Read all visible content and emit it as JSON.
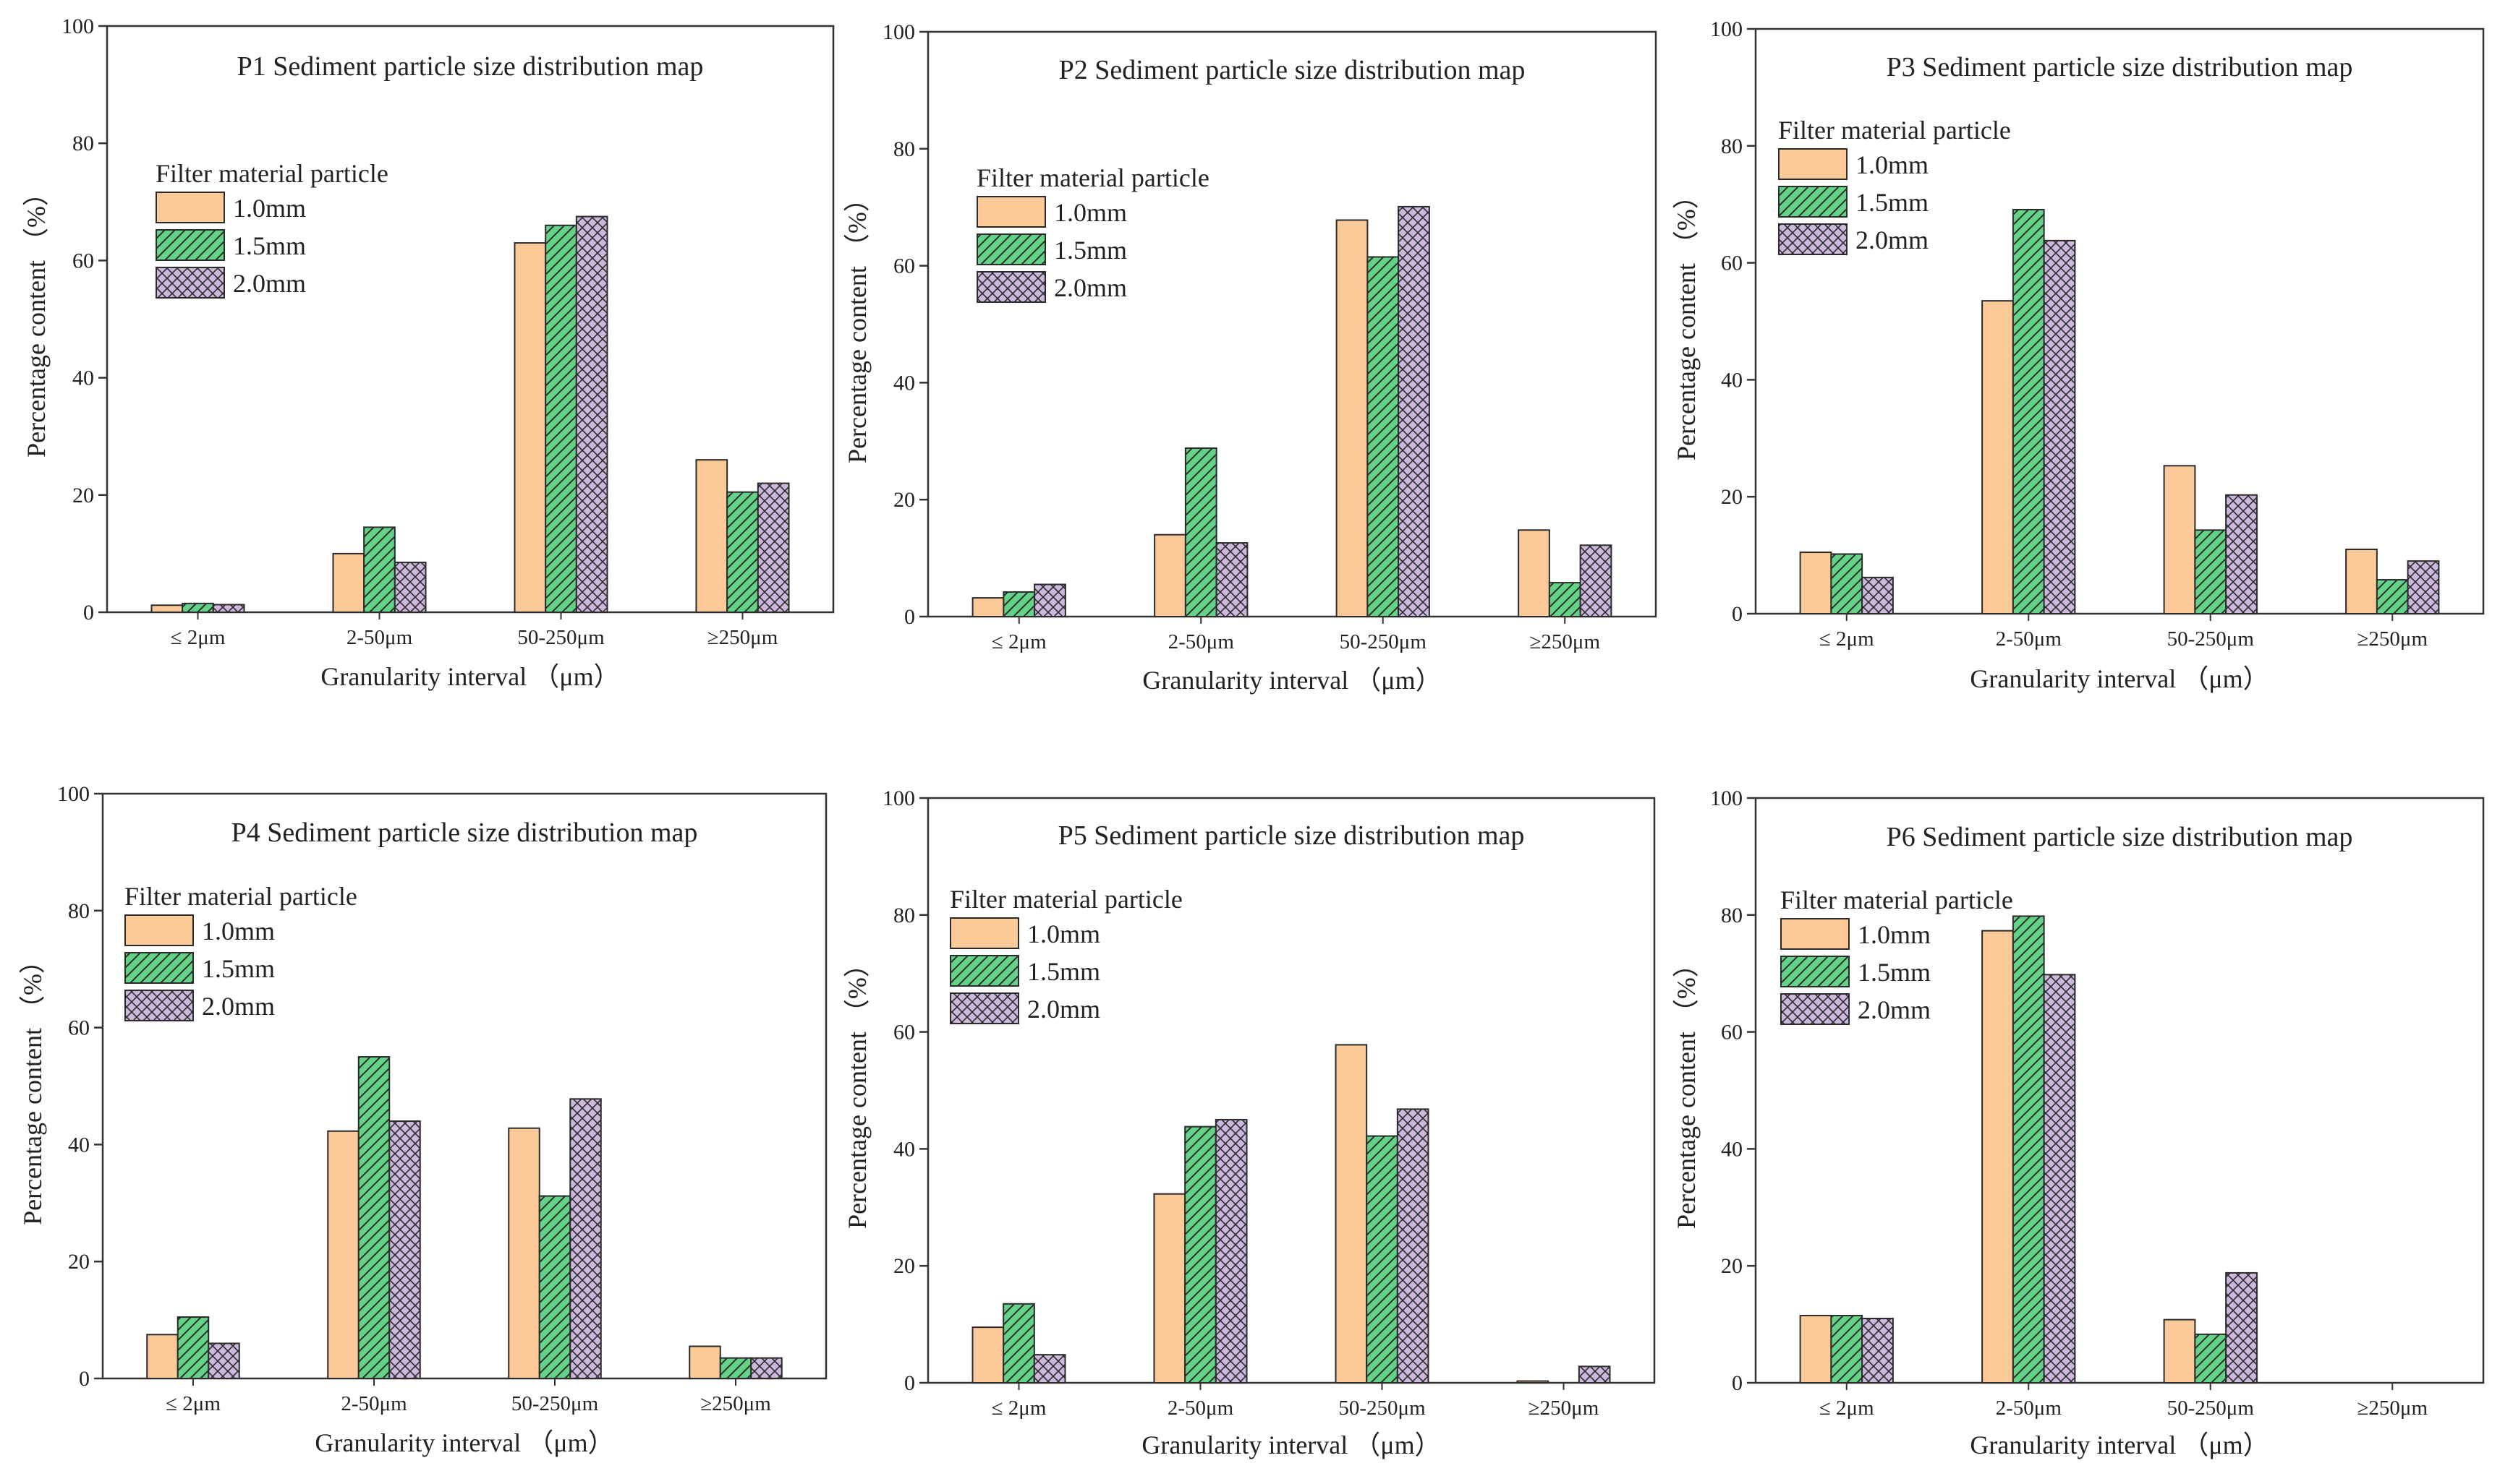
{
  "colors": {
    "s1_fill": "#fcc998",
    "s2_fill": "#63d387",
    "s3_fill": "#cdb7dd",
    "edge": "#2b2b2b",
    "hatch": "#2b2b2b"
  },
  "chart_data": [
    {
      "type": "bar",
      "title": "P1 Sediment particle size distribution map",
      "xlabel": "Granularity interval （μm）",
      "ylabel": "Percentage content （%）",
      "categories": [
        "≤ 2μm",
        "2-50μm",
        "50-250μm",
        "≥250μm"
      ],
      "ylim": [
        0,
        100
      ],
      "yticks": [
        "0",
        "20",
        "40",
        "60",
        "80",
        "100"
      ],
      "legend_title": "Filter material particle",
      "legend_position": "top-left",
      "series": [
        {
          "name": "1.0mm",
          "values": [
            1.2,
            10,
            63,
            26
          ]
        },
        {
          "name": "1.5mm",
          "values": [
            1.5,
            14.5,
            66,
            20.5
          ]
        },
        {
          "name": "2.0mm",
          "values": [
            1.3,
            8.5,
            67.5,
            22
          ]
        }
      ]
    },
    {
      "type": "bar",
      "title": "P2 Sediment particle size distribution map",
      "xlabel": "Granularity interval （μm）",
      "ylabel": "Percentage content （%）",
      "categories": [
        "≤ 2μm",
        "2-50μm",
        "50-250μm",
        "≥250μm"
      ],
      "ylim": [
        0,
        100
      ],
      "yticks": [
        "0",
        "20",
        "40",
        "60",
        "80",
        "100"
      ],
      "legend_title": "Filter material particle",
      "legend_position": "top-left",
      "series": [
        {
          "name": "1.0mm",
          "values": [
            3.2,
            14,
            67.8,
            14.8
          ]
        },
        {
          "name": "1.5mm",
          "values": [
            4.2,
            28.8,
            61.5,
            5.8
          ]
        },
        {
          "name": "2.0mm",
          "values": [
            5.5,
            12.6,
            70.1,
            12.2
          ]
        }
      ]
    },
    {
      "type": "bar",
      "title": "P3 Sediment particle size distribution map",
      "xlabel": "Granularity interval （μm）",
      "ylabel": "Percentage content （%）",
      "categories": [
        "≤ 2μm",
        "2-50μm",
        "50-250μm",
        "≥250μm"
      ],
      "ylim": [
        0,
        100
      ],
      "yticks": [
        "0",
        "20",
        "40",
        "60",
        "80",
        "100"
      ],
      "legend_title": "Filter material particle",
      "legend_position": "top-left",
      "series": [
        {
          "name": "1.0mm",
          "values": [
            10.5,
            53.5,
            25.3,
            11
          ]
        },
        {
          "name": "1.5mm",
          "values": [
            10.2,
            69.1,
            14.3,
            5.8
          ]
        },
        {
          "name": "2.0mm",
          "values": [
            6.2,
            63.8,
            20.3,
            9
          ]
        }
      ]
    },
    {
      "type": "bar",
      "title": "P4 Sediment particle size distribution map",
      "xlabel": "Granularity interval （μm）",
      "ylabel": "Percentage content （%）",
      "categories": [
        "≤ 2μm",
        "2-50μm",
        "50-250μm",
        "≥250μm"
      ],
      "ylim": [
        0,
        100
      ],
      "yticks": [
        "0",
        "20",
        "40",
        "60",
        "80",
        "100"
      ],
      "legend_title": "Filter material particle",
      "legend_position": "top-left",
      "series": [
        {
          "name": "1.0mm",
          "values": [
            7.5,
            42.3,
            42.8,
            5.5
          ]
        },
        {
          "name": "1.5mm",
          "values": [
            10.5,
            55,
            31.2,
            3.5
          ]
        },
        {
          "name": "2.0mm",
          "values": [
            6,
            44,
            47.8,
            3.5
          ]
        }
      ]
    },
    {
      "type": "bar",
      "title": "P5 Sediment particle size distribution map",
      "xlabel": "Granularity interval （μm）",
      "ylabel": "Percentage content （%）",
      "categories": [
        "≤ 2μm",
        "2-50μm",
        "50-250μm",
        "≥250μm"
      ],
      "ylim": [
        0,
        100
      ],
      "yticks": [
        "0",
        "20",
        "40",
        "60",
        "80",
        "100"
      ],
      "legend_title": "Filter material particle",
      "legend_position": "top-left",
      "series": [
        {
          "name": "1.0mm",
          "values": [
            9.5,
            32.3,
            57.8,
            0.3
          ]
        },
        {
          "name": "1.5mm",
          "values": [
            13.5,
            43.8,
            42.2,
            0
          ]
        },
        {
          "name": "2.0mm",
          "values": [
            4.8,
            45,
            46.8,
            2.8
          ]
        }
      ]
    },
    {
      "type": "bar",
      "title": "P6 Sediment particle size distribution map",
      "xlabel": "Granularity interval （μm）",
      "ylabel": "Percentage content （%）",
      "categories": [
        "≤ 2μm",
        "2-50μm",
        "50-250μm",
        "≥250μm"
      ],
      "ylim": [
        0,
        100
      ],
      "yticks": [
        "0",
        "20",
        "40",
        "60",
        "80",
        "100"
      ],
      "legend_title": "Filter material particle",
      "legend_position": "top-left",
      "series": [
        {
          "name": "1.0mm",
          "values": [
            11.5,
            77.3,
            10.8,
            0
          ]
        },
        {
          "name": "1.5mm",
          "values": [
            11.5,
            79.8,
            8.3,
            0
          ]
        },
        {
          "name": "2.0mm",
          "values": [
            11,
            69.8,
            18.8,
            0
          ]
        }
      ]
    }
  ]
}
